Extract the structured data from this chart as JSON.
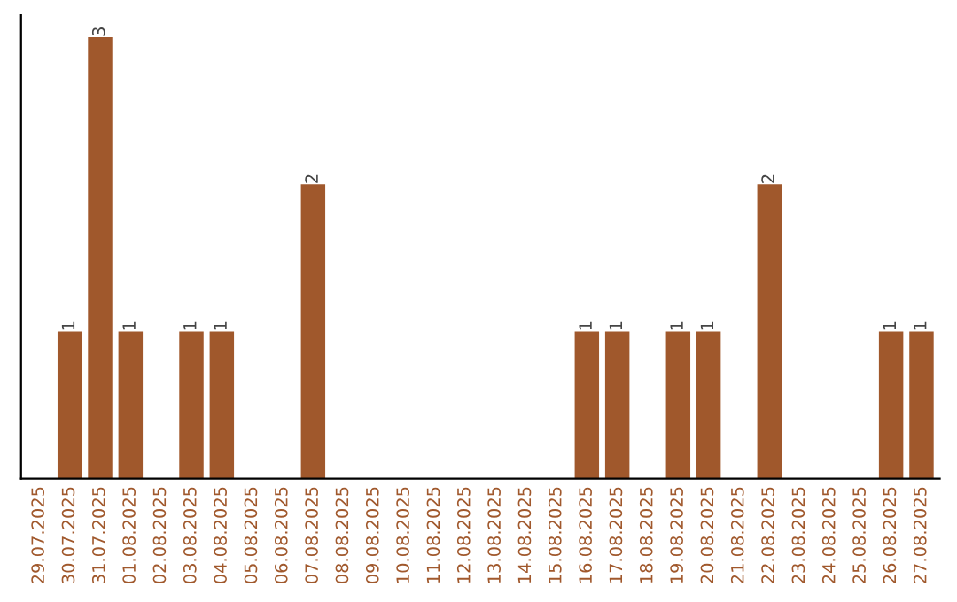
{
  "chart_data": {
    "type": "bar",
    "categories": [
      "29.07.2025",
      "30.07.2025",
      "31.07.2025",
      "01.08.2025",
      "02.08.2025",
      "03.08.2025",
      "04.08.2025",
      "05.08.2025",
      "06.08.2025",
      "07.08.2025",
      "08.08.2025",
      "09.08.2025",
      "10.08.2025",
      "11.08.2025",
      "12.08.2025",
      "13.08.2025",
      "14.08.2025",
      "15.08.2025",
      "16.08.2025",
      "17.08.2025",
      "18.08.2025",
      "19.08.2025",
      "20.08.2025",
      "21.08.2025",
      "22.08.2025",
      "23.08.2025",
      "24.08.2025",
      "25.08.2025",
      "26.08.2025",
      "27.08.2025"
    ],
    "values": [
      0,
      1,
      3,
      1,
      0,
      1,
      1,
      0,
      0,
      2,
      0,
      0,
      0,
      0,
      0,
      0,
      0,
      0,
      1,
      1,
      0,
      1,
      1,
      0,
      2,
      0,
      0,
      0,
      1,
      1
    ],
    "value_labels": [
      null,
      "1",
      "3",
      "1",
      null,
      "1",
      "1",
      null,
      null,
      "2",
      null,
      null,
      null,
      null,
      null,
      null,
      null,
      null,
      "1",
      "1",
      null,
      "1",
      "1",
      null,
      "2",
      null,
      null,
      null,
      "1",
      "1"
    ],
    "color": "#a0582c",
    "tick_labels": "x",
    "grid": false,
    "legend": false
  }
}
